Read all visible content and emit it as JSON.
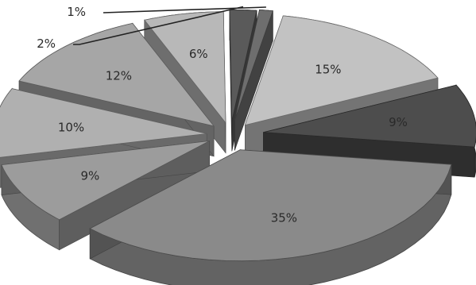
{
  "chart_data": {
    "type": "pie",
    "style": "3d exploded",
    "title": "",
    "slices": [
      {
        "value": 15,
        "label": "15%",
        "color": "#c2c2c2"
      },
      {
        "value": 9,
        "label": "9%",
        "color": "#4d4d4d"
      },
      {
        "value": 35,
        "label": "35%",
        "color": "#8a8a8a"
      },
      {
        "value": 9,
        "label": "9%",
        "color": "#9c9c9c"
      },
      {
        "value": 10,
        "label": "10%",
        "color": "#b0b0b0"
      },
      {
        "value": 12,
        "label": "12%",
        "color": "#a6a6a6"
      },
      {
        "value": 6,
        "label": "6%",
        "color": "#b8b8b8"
      },
      {
        "value": 2,
        "label": "2%",
        "color": "#5a5a5a"
      },
      {
        "value": 1,
        "label": "1%",
        "color": "#6e6e6e"
      }
    ]
  }
}
